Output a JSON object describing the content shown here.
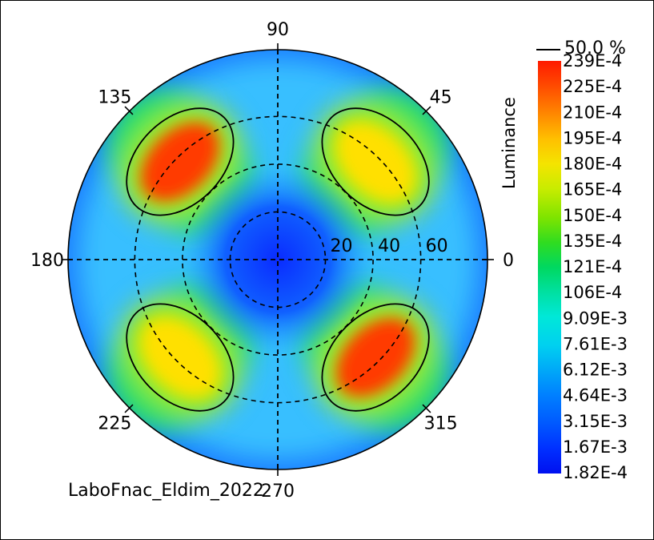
{
  "chart_data": {
    "type": "heatmap",
    "projection": "polar",
    "footer": "LaboFnac_Eldim_2022",
    "angle_ticks": [
      {
        "value": 90,
        "label": "90"
      },
      {
        "value": 45,
        "label": "45"
      },
      {
        "value": 135,
        "label": "135"
      },
      {
        "value": 180,
        "label": "180"
      },
      {
        "value": 0,
        "label": "0"
      },
      {
        "value": 225,
        "label": "225"
      },
      {
        "value": 315,
        "label": "315"
      },
      {
        "value": 270,
        "label": "270"
      }
    ],
    "radial_ticks": [
      {
        "value": 20,
        "label": "20"
      },
      {
        "value": 40,
        "label": "40"
      },
      {
        "value": 60,
        "label": "60"
      }
    ],
    "radial_max": 88,
    "contour": {
      "label": "50.0 %"
    },
    "colorbar": {
      "title": "Luminance",
      "labels": [
        "239E-4",
        "225E-4",
        "210E-4",
        "195E-4",
        "180E-4",
        "165E-4",
        "150E-4",
        "135E-4",
        "121E-4",
        "106E-4",
        "9.09E-3",
        "7.61E-3",
        "6.12E-3",
        "4.64E-3",
        "3.15E-3",
        "1.67E-3",
        "1.82E-4"
      ],
      "colors": [
        "#ff1a00",
        "#ff6a00",
        "#ffb000",
        "#f0e000",
        "#b8ec00",
        "#60e400",
        "#10d840",
        "#00e090",
        "#00d8d8",
        "#0090f0",
        "#0030ff"
      ]
    },
    "lobes": [
      {
        "azimuth": 135,
        "polar": 58,
        "peak": "239E-4"
      },
      {
        "azimuth": 45,
        "polar": 58,
        "peak": "180E-4"
      },
      {
        "azimuth": 225,
        "polar": 58,
        "peak": "180E-4"
      },
      {
        "azimuth": 315,
        "polar": 58,
        "peak": "239E-4"
      }
    ]
  }
}
